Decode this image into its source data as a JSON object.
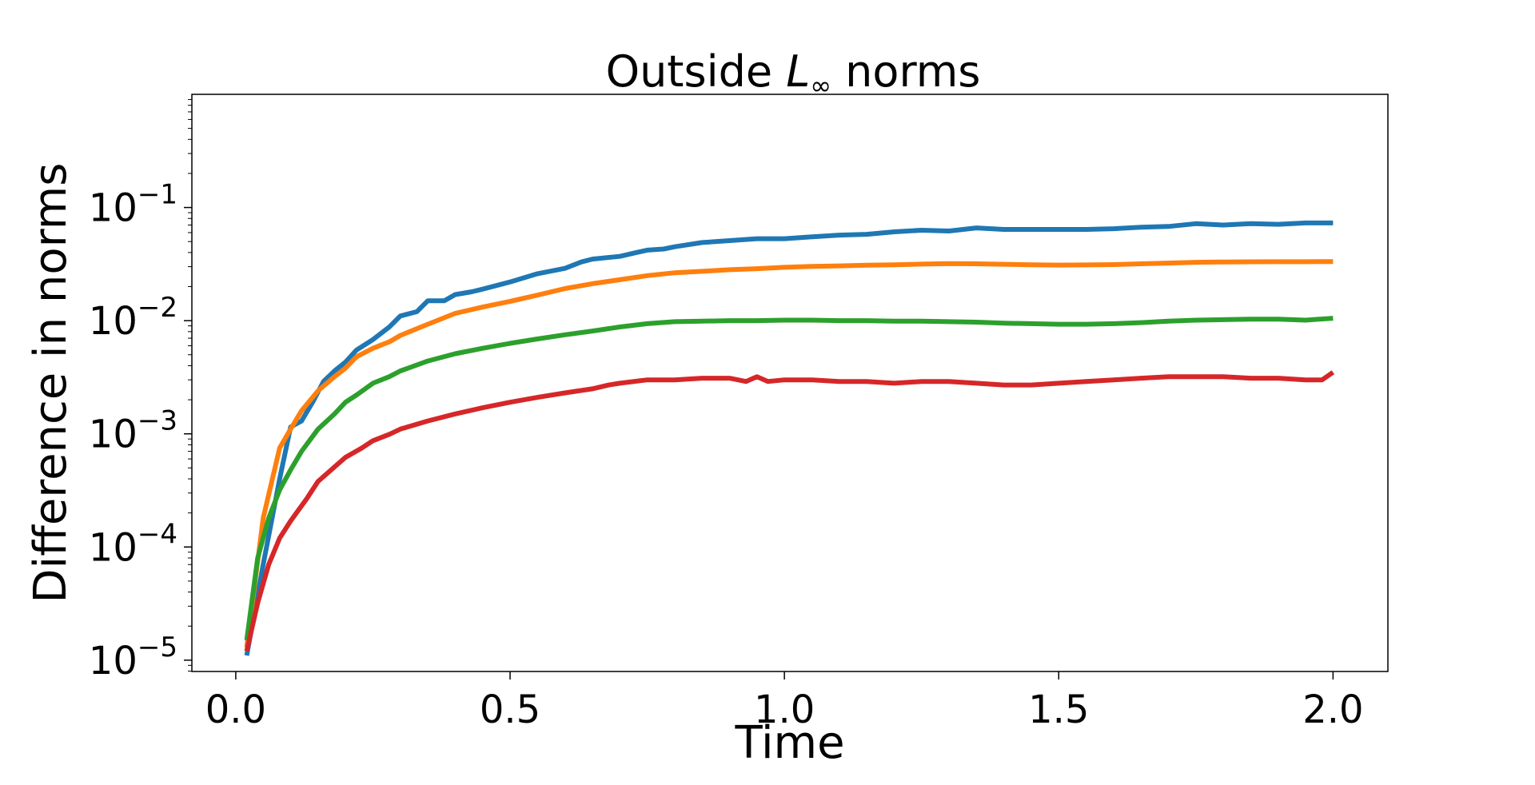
{
  "chart_data": {
    "type": "line",
    "title": {
      "prefix": "Outside ",
      "symbol": "L",
      "subscript": "∞",
      "suffix": " norms"
    },
    "xlabel": "Time",
    "ylabel": "Difference in norms",
    "xlim": [
      -0.08,
      2.1
    ],
    "ylim_log10": [
      -5.1,
      0.0
    ],
    "y_scale": "log",
    "x_ticks": [
      {
        "value": 0.0,
        "label": "0.0"
      },
      {
        "value": 0.5,
        "label": "0.5"
      },
      {
        "value": 1.0,
        "label": "1.0"
      },
      {
        "value": 1.5,
        "label": "1.5"
      },
      {
        "value": 2.0,
        "label": "2.0"
      }
    ],
    "y_ticks": [
      {
        "exp": -5,
        "base": "10",
        "sup": "−5"
      },
      {
        "exp": -4,
        "base": "10",
        "sup": "−4"
      },
      {
        "exp": -3,
        "base": "10",
        "sup": "−3"
      },
      {
        "exp": -2,
        "base": "10",
        "sup": "−2"
      },
      {
        "exp": -1,
        "base": "10",
        "sup": "−1"
      }
    ],
    "grid": false,
    "legend": "none",
    "series": [
      {
        "color": "#1f77b4",
        "x": [
          0.02,
          0.05,
          0.08,
          0.1,
          0.12,
          0.14,
          0.16,
          0.18,
          0.2,
          0.22,
          0.25,
          0.28,
          0.3,
          0.33,
          0.35,
          0.38,
          0.4,
          0.43,
          0.45,
          0.5,
          0.55,
          0.6,
          0.63,
          0.65,
          0.7,
          0.73,
          0.75,
          0.78,
          0.8,
          0.85,
          0.9,
          0.95,
          1.0,
          1.05,
          1.1,
          1.15,
          1.2,
          1.25,
          1.3,
          1.35,
          1.4,
          1.45,
          1.5,
          1.55,
          1.6,
          1.65,
          1.7,
          1.75,
          1.8,
          1.85,
          1.9,
          1.95,
          2.0
        ],
        "y": [
          1.1e-05,
          7e-05,
          0.0004,
          0.00115,
          0.0013,
          0.0019,
          0.0029,
          0.0036,
          0.0043,
          0.0055,
          0.0068,
          0.0088,
          0.011,
          0.012,
          0.015,
          0.015,
          0.017,
          0.018,
          0.019,
          0.022,
          0.026,
          0.029,
          0.033,
          0.035,
          0.037,
          0.04,
          0.042,
          0.043,
          0.045,
          0.049,
          0.051,
          0.053,
          0.053,
          0.055,
          0.057,
          0.058,
          0.061,
          0.063,
          0.062,
          0.066,
          0.064,
          0.064,
          0.064,
          0.064,
          0.065,
          0.067,
          0.068,
          0.072,
          0.07,
          0.072,
          0.071,
          0.073,
          0.073
        ]
      },
      {
        "color": "#ff7f0e",
        "x": [
          0.02,
          0.05,
          0.08,
          0.1,
          0.12,
          0.15,
          0.18,
          0.2,
          0.22,
          0.25,
          0.28,
          0.3,
          0.35,
          0.4,
          0.45,
          0.5,
          0.55,
          0.6,
          0.65,
          0.7,
          0.75,
          0.8,
          0.85,
          0.9,
          0.95,
          1.0,
          1.05,
          1.1,
          1.15,
          1.2,
          1.25,
          1.3,
          1.35,
          1.4,
          1.45,
          1.5,
          1.55,
          1.6,
          1.65,
          1.7,
          1.75,
          1.8,
          1.85,
          1.9,
          1.95,
          2.0
        ],
        "y": [
          1.3e-05,
          0.00018,
          0.00075,
          0.0011,
          0.0016,
          0.0024,
          0.0032,
          0.0038,
          0.0048,
          0.0057,
          0.0065,
          0.0074,
          0.0093,
          0.0116,
          0.0132,
          0.0148,
          0.0168,
          0.0192,
          0.0212,
          0.023,
          0.025,
          0.0265,
          0.0273,
          0.0282,
          0.0288,
          0.0296,
          0.0302,
          0.0305,
          0.0309,
          0.0312,
          0.0316,
          0.0319,
          0.0318,
          0.0315,
          0.0312,
          0.031,
          0.0311,
          0.0313,
          0.0318,
          0.0323,
          0.0328,
          0.033,
          0.0331,
          0.0332,
          0.0332,
          0.0333
        ]
      },
      {
        "color": "#2ca02c",
        "x": [
          0.02,
          0.04,
          0.06,
          0.08,
          0.1,
          0.12,
          0.15,
          0.18,
          0.2,
          0.22,
          0.25,
          0.28,
          0.3,
          0.35,
          0.4,
          0.45,
          0.5,
          0.55,
          0.6,
          0.65,
          0.7,
          0.75,
          0.8,
          0.85,
          0.9,
          0.95,
          1.0,
          1.05,
          1.1,
          1.15,
          1.2,
          1.25,
          1.3,
          1.35,
          1.4,
          1.45,
          1.5,
          1.55,
          1.6,
          1.65,
          1.7,
          1.75,
          1.8,
          1.85,
          1.9,
          1.95,
          2.0
        ],
        "y": [
          1.5e-05,
          8e-05,
          0.00018,
          0.00032,
          0.00048,
          0.0007,
          0.0011,
          0.0015,
          0.0019,
          0.0022,
          0.0028,
          0.0032,
          0.0036,
          0.0044,
          0.0051,
          0.0057,
          0.0063,
          0.0069,
          0.0075,
          0.0081,
          0.0088,
          0.0094,
          0.0098,
          0.0099,
          0.01,
          0.01,
          0.0101,
          0.0101,
          0.01,
          0.01,
          0.0099,
          0.0099,
          0.0098,
          0.0097,
          0.0095,
          0.0094,
          0.0093,
          0.0093,
          0.0094,
          0.0096,
          0.0099,
          0.0101,
          0.0102,
          0.0103,
          0.0103,
          0.0101,
          0.0105
        ]
      },
      {
        "color": "#d62728",
        "x": [
          0.02,
          0.04,
          0.06,
          0.08,
          0.1,
          0.13,
          0.15,
          0.18,
          0.2,
          0.23,
          0.25,
          0.28,
          0.3,
          0.35,
          0.4,
          0.45,
          0.5,
          0.55,
          0.6,
          0.65,
          0.68,
          0.7,
          0.75,
          0.8,
          0.85,
          0.9,
          0.93,
          0.95,
          0.97,
          1.0,
          1.05,
          1.1,
          1.15,
          1.2,
          1.25,
          1.3,
          1.35,
          1.4,
          1.45,
          1.5,
          1.55,
          1.6,
          1.65,
          1.7,
          1.75,
          1.8,
          1.85,
          1.9,
          1.95,
          1.98,
          2.0
        ],
        "y": [
          1.2e-05,
          3.2e-05,
          7e-05,
          0.00012,
          0.00017,
          0.00027,
          0.00038,
          0.00051,
          0.00062,
          0.00075,
          0.00087,
          0.00099,
          0.0011,
          0.0013,
          0.0015,
          0.0017,
          0.0019,
          0.0021,
          0.0023,
          0.0025,
          0.0027,
          0.0028,
          0.003,
          0.003,
          0.0031,
          0.0031,
          0.0029,
          0.0032,
          0.0029,
          0.003,
          0.003,
          0.0029,
          0.0029,
          0.0028,
          0.0029,
          0.0029,
          0.0028,
          0.0027,
          0.0027,
          0.0028,
          0.0029,
          0.003,
          0.0031,
          0.0032,
          0.0032,
          0.0032,
          0.0031,
          0.0031,
          0.003,
          0.003,
          0.0035
        ]
      }
    ]
  }
}
